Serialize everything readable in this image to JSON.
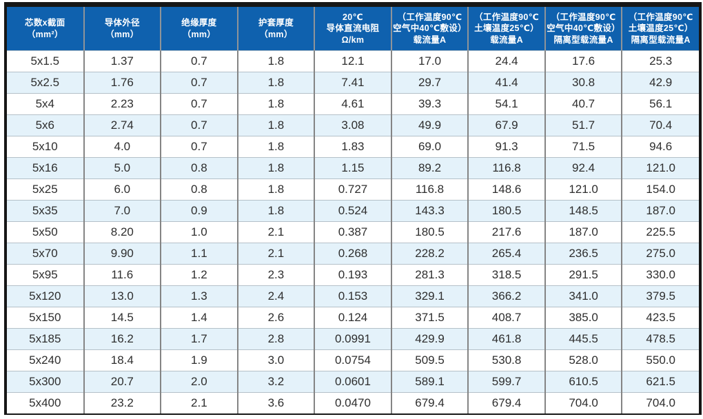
{
  "table": {
    "colors": {
      "header_bg": "#0f61ae",
      "header_text": "#ffffff",
      "header_divider": "#8f9499",
      "row_bg": "#ffffff",
      "row_alt_bg": "#e4f2fa",
      "cell_text": "#2e2e2e",
      "v_border": "#848484",
      "h_border": "#b4c0c8",
      "outer_border": "#161616"
    },
    "headers": [
      {
        "id": "cores-and-section",
        "lines": [
          "芯数x截面",
          "（mm²）"
        ]
      },
      {
        "id": "conductor-od",
        "lines": [
          "导体外径",
          "（mm）"
        ]
      },
      {
        "id": "insulation-thickness",
        "lines": [
          "绝缘厚度",
          "（mm）"
        ]
      },
      {
        "id": "sheath-thickness",
        "lines": [
          "护套厚度",
          "（mm）"
        ]
      },
      {
        "id": "dc-resistance-20c",
        "lines": [
          "20℃",
          "导体直流电阻",
          "Ω/km"
        ]
      },
      {
        "id": "ampacity-air",
        "lines": [
          "（工作温度90℃",
          "空气中40℃敷设）",
          "载流量A"
        ]
      },
      {
        "id": "ampacity-soil",
        "lines": [
          "（工作温度90℃",
          "土壤温度25℃）",
          "载流量A"
        ]
      },
      {
        "id": "isolated-ampacity-air",
        "lines": [
          "（工作温度90℃",
          "空气中40℃敷设）",
          "隔离型载流量A"
        ]
      },
      {
        "id": "isolated-ampacity-soil",
        "lines": [
          "（工作温度90℃",
          "土壤温度25℃）",
          "隔离型载流量A"
        ]
      }
    ],
    "rows": [
      [
        "5x1.5",
        "1.37",
        "0.7",
        "1.8",
        "12.1",
        "17.0",
        "24.4",
        "17.6",
        "25.3"
      ],
      [
        "5x2.5",
        "1.76",
        "0.7",
        "1.8",
        "7.41",
        "29.7",
        "41.4",
        "30.8",
        "42.9"
      ],
      [
        "5x4",
        "2.23",
        "0.7",
        "1.8",
        "4.61",
        "39.3",
        "54.1",
        "40.7",
        "56.1"
      ],
      [
        "5x6",
        "2.74",
        "0.7",
        "1.8",
        "3.08",
        "49.9",
        "67.9",
        "51.7",
        "70.4"
      ],
      [
        "5x10",
        "4.0",
        "0.7",
        "1.8",
        "1.83",
        "69.0",
        "91.3",
        "71.5",
        "94.6"
      ],
      [
        "5x16",
        "5.0",
        "0.8",
        "1.8",
        "1.15",
        "89.2",
        "116.8",
        "92.4",
        "121.0"
      ],
      [
        "5x25",
        "6.0",
        "0.8",
        "1.8",
        "0.727",
        "116.8",
        "148.6",
        "121.0",
        "154.0"
      ],
      [
        "5x35",
        "7.0",
        "0.9",
        "1.8",
        "0.524",
        "143.3",
        "180.5",
        "148.5",
        "187.0"
      ],
      [
        "5x50",
        "8.20",
        "1.0",
        "2.1",
        "0.387",
        "180.5",
        "217.6",
        "187.0",
        "225.5"
      ],
      [
        "5x70",
        "9.90",
        "1.1",
        "2.1",
        "0.268",
        "228.2",
        "265.4",
        "236.5",
        "275.0"
      ],
      [
        "5x95",
        "11.6",
        "1.2",
        "2.3",
        "0.193",
        "281.3",
        "318.5",
        "291.5",
        "330.0"
      ],
      [
        "5x120",
        "13.0",
        "1.3",
        "2.4",
        "0.153",
        "329.1",
        "366.2",
        "341.0",
        "379.5"
      ],
      [
        "5x150",
        "14.5",
        "1.4",
        "2.6",
        "0.124",
        "371.5",
        "408.7",
        "385.0",
        "423.5"
      ],
      [
        "5x185",
        "16.2",
        "1.7",
        "2.8",
        "0.0991",
        "429.9",
        "461.8",
        "445.5",
        "478.5"
      ],
      [
        "5x240",
        "18.4",
        "1.9",
        "3.0",
        "0.0754",
        "509.5",
        "530.8",
        "528.0",
        "550.0"
      ],
      [
        "5x300",
        "20.7",
        "2.0",
        "3.2",
        "0.0601",
        "589.1",
        "599.7",
        "610.5",
        "621.5"
      ],
      [
        "5x400",
        "23.2",
        "2.1",
        "3.6",
        "0.0470",
        "679.4",
        "679.4",
        "704.0",
        "704.0"
      ]
    ]
  }
}
